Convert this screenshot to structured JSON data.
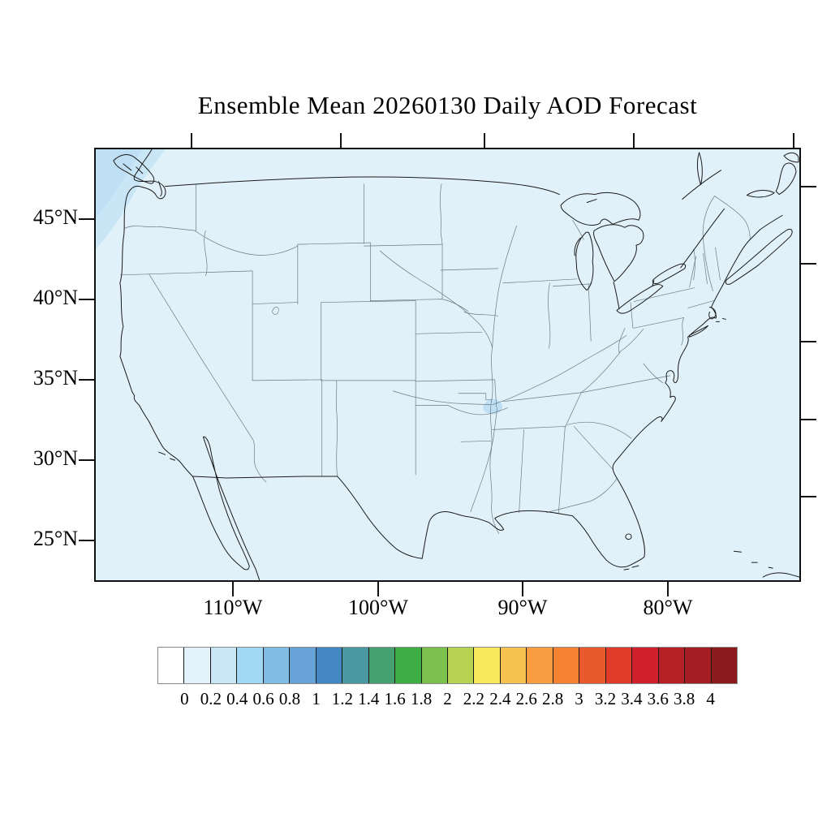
{
  "title": "Ensemble Mean 20260130 Daily AOD Forecast",
  "map_axes": {
    "lat_labels": [
      "45°N",
      "40°N",
      "35°N",
      "30°N",
      "25°N"
    ],
    "lon_labels": [
      "110°W",
      "100°W",
      "90°W",
      "80°W"
    ]
  },
  "colorbar": {
    "tick_labels": [
      "0",
      "0.2",
      "0.4",
      "0.6",
      "0.8",
      "1",
      "1.2",
      "1.4",
      "1.6",
      "1.8",
      "2",
      "2.2",
      "2.4",
      "2.6",
      "2.8",
      "3",
      "3.2",
      "3.4",
      "3.6",
      "3.8",
      "4"
    ],
    "colors": [
      "#FFFFFF",
      "#E2F1FA",
      "#C9E7F7",
      "#A3D8F5",
      "#81BCE2",
      "#66A2D5",
      "#4287C4",
      "#4A99A0",
      "#46A172",
      "#3FAD46",
      "#7CC04D",
      "#B6D351",
      "#F8E85B",
      "#F6C350",
      "#F89E40",
      "#F58230",
      "#E8592B",
      "#E03C29",
      "#D0202B",
      "#B52026",
      "#A31D23",
      "#8B1A1D"
    ]
  },
  "map_colors": {
    "background_aod_0_02": "#E1F1FA",
    "patch_aod_02_04": "#C3E2F5",
    "coastline": "#1a1a1a",
    "state_border": "#6b7b85"
  },
  "chart_data": {
    "type": "heatmap",
    "subtype": "filled_contour_geographic_map",
    "title": "Ensemble Mean 20260130 Daily AOD Forecast",
    "variable": "Aerosol Optical Depth (AOD), ensemble-mean daily forecast",
    "date": "20260130",
    "region": "Contiguous United States with portions of Canada and Mexico",
    "projection_appearance": "conic-style CONUS map, axes ticked in lat/lon",
    "lat_ticks_deg_n": [
      45,
      40,
      35,
      30,
      25
    ],
    "lon_ticks_deg_w": [
      110,
      100,
      90,
      80
    ],
    "colorbar_levels": [
      0,
      0.2,
      0.4,
      0.6,
      0.8,
      1,
      1.2,
      1.4,
      1.6,
      1.8,
      2,
      2.2,
      2.4,
      2.6,
      2.8,
      3,
      3.2,
      3.4,
      3.6,
      3.8,
      4
    ],
    "colorbar_orientation": "horizontal, below map",
    "grid": false,
    "field_values": [
      {
        "region": "entire CONUS domain (background)",
        "aod_range": "0–0.2"
      },
      {
        "region": "Pacific Ocean off Washington/Oregon coast (northwest corner)",
        "aod_range": "0.2–0.4"
      },
      {
        "region": "small patch near Missouri/Arkansas/Tennessee junction (Memphis area)",
        "aod_range": "0.2–0.4"
      }
    ]
  }
}
